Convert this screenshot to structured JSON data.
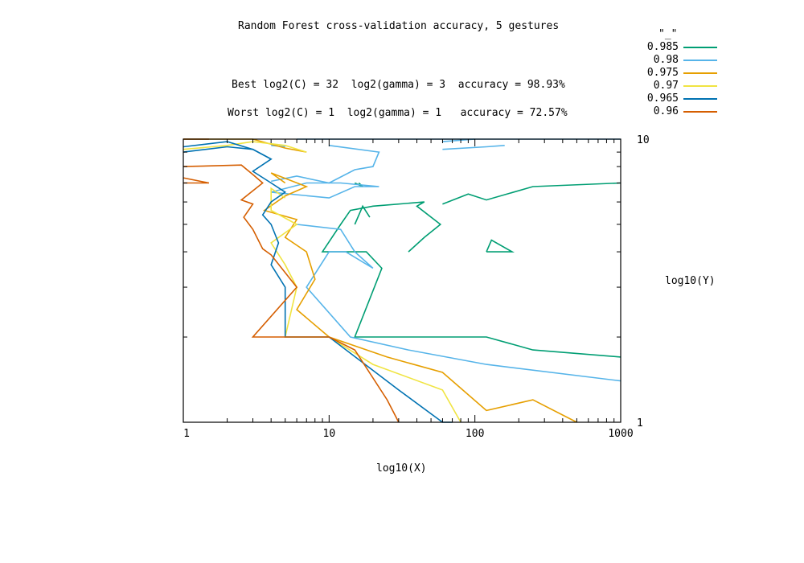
{
  "chart_data": {
    "type": "line",
    "title": "Random Forest cross-validation accuracy, 5 gestures",
    "annotations": [
      "Best log2(C) = 32  log2(gamma) = 3  accuracy = 98.93%",
      "Worst log2(C) = 1  log2(gamma) = 1   accuracy = 72.57%"
    ],
    "xlabel": "log10(X)",
    "ylabel": "log10(Y)",
    "x_scale": "log",
    "y_scale": "log",
    "xlim": [
      1,
      1000
    ],
    "ylim": [
      1,
      10
    ],
    "x_ticks": [
      "1",
      "10",
      "100",
      "1000"
    ],
    "y_ticks": [
      "1",
      "10"
    ],
    "legend_title": "\"_\"",
    "legend_position": "top-right",
    "series": [
      {
        "name": "0.985",
        "color": "#009e73",
        "segments": [
          [
            [
              35,
              4
            ],
            [
              45,
              4.5
            ],
            [
              58,
              5
            ],
            [
              40,
              5.8
            ],
            [
              45,
              6
            ],
            [
              20,
              5.8
            ],
            [
              14,
              5.6
            ],
            [
              12,
              5
            ],
            [
              9,
              4
            ],
            [
              18,
              4
            ],
            [
              23,
              3.5
            ],
            [
              15,
              2
            ],
            [
              120,
              2
            ],
            [
              250,
              1.8
            ],
            [
              1000,
              1.7
            ]
          ],
          [
            [
              120,
              4
            ],
            [
              130,
              4.4
            ],
            [
              180,
              4
            ],
            [
              120,
              4
            ]
          ],
          [
            [
              60,
              5.9
            ],
            [
              90,
              6.4
            ],
            [
              120,
              6.1
            ],
            [
              250,
              6.8
            ],
            [
              1000,
              7
            ]
          ],
          [
            [
              15,
              5
            ],
            [
              17,
              5.8
            ],
            [
              19,
              5.3
            ]
          ],
          [
            [
              15,
              7
            ],
            [
              17,
              6.8
            ],
            [
              16,
              7
            ]
          ]
        ]
      },
      {
        "name": "0.98",
        "color": "#56b4e9",
        "segments": [
          [
            [
              6,
              10
            ],
            [
              1000,
              10
            ]
          ],
          [
            [
              4,
              9.5
            ],
            [
              5,
              9.4
            ]
          ],
          [
            [
              4,
              6.5
            ],
            [
              10,
              6.2
            ],
            [
              15,
              6.8
            ],
            [
              22,
              6.8
            ],
            [
              12,
              7
            ],
            [
              7,
              7
            ],
            [
              4,
              6.5
            ]
          ],
          [
            [
              10,
              9.5
            ],
            [
              22,
              9
            ],
            [
              20,
              8
            ],
            [
              15,
              7.8
            ],
            [
              10,
              7
            ],
            [
              6,
              7.4
            ],
            [
              4,
              7.1
            ]
          ],
          [
            [
              6,
              5
            ],
            [
              12,
              4.8
            ],
            [
              15,
              4
            ],
            [
              20,
              3.5
            ],
            [
              13,
              4
            ],
            [
              10,
              4
            ],
            [
              7,
              3
            ],
            [
              14,
              2
            ],
            [
              35,
              1.8
            ],
            [
              120,
              1.6
            ],
            [
              1000,
              1.4
            ]
          ],
          [
            [
              60,
              9.2
            ],
            [
              120,
              9.4
            ]
          ],
          [
            [
              60,
              9.8
            ],
            [
              100,
              10
            ]
          ],
          [
            [
              120,
              9.4
            ],
            [
              160,
              9.5
            ]
          ]
        ]
      },
      {
        "name": "0.975",
        "color": "#e69f00",
        "segments": [
          [
            [
              1,
              10
            ],
            [
              3,
              10
            ],
            [
              5,
              9.3
            ],
            [
              7,
              9
            ]
          ],
          [
            [
              5,
              7
            ],
            [
              4,
              7.6
            ],
            [
              7,
              6.8
            ],
            [
              5,
              6.3
            ],
            [
              3.6,
              5.6
            ],
            [
              6,
              5.2
            ],
            [
              5,
              4.5
            ],
            [
              7,
              4
            ],
            [
              8,
              3.2
            ],
            [
              6,
              2.5
            ],
            [
              10,
              2
            ],
            [
              25,
              1.7
            ],
            [
              60,
              1.5
            ],
            [
              120,
              1.1
            ],
            [
              250,
              1.2
            ],
            [
              500,
              1
            ]
          ]
        ]
      },
      {
        "name": "0.97",
        "color": "#f0e442",
        "segments": [
          [
            [
              1,
              9.2
            ],
            [
              2,
              9.5
            ],
            [
              3,
              9.8
            ],
            [
              5,
              9.5
            ],
            [
              7,
              9
            ]
          ],
          [
            [
              5,
              6.2
            ],
            [
              4,
              6.7
            ],
            [
              4,
              5.6
            ],
            [
              6,
              5
            ],
            [
              4,
              4.3
            ],
            [
              5,
              3.6
            ],
            [
              6,
              3
            ],
            [
              5,
              2
            ],
            [
              10,
              2
            ],
            [
              20,
              1.6
            ],
            [
              60,
              1.3
            ],
            [
              80,
              1
            ]
          ]
        ]
      },
      {
        "name": "0.965",
        "color": "#0072b2",
        "segments": [
          [
            [
              1,
              9.4
            ],
            [
              2,
              9.8
            ],
            [
              3,
              9.2
            ],
            [
              4,
              8.5
            ]
          ],
          [
            [
              1,
              9
            ],
            [
              2,
              9.4
            ],
            [
              3,
              9.2
            ],
            [
              4,
              8.5
            ],
            [
              3,
              7.7
            ],
            [
              4,
              7
            ],
            [
              5,
              6.5
            ],
            [
              4,
              6
            ],
            [
              3.5,
              5.4
            ],
            [
              4,
              5
            ],
            [
              4.5,
              4.3
            ],
            [
              4,
              3.6
            ],
            [
              5,
              3
            ],
            [
              5,
              2
            ],
            [
              10,
              2
            ],
            [
              30,
              1.3
            ],
            [
              60,
              1
            ],
            [
              70,
              1
            ]
          ]
        ]
      },
      {
        "name": "0.96",
        "color": "#d55e00",
        "segments": [
          [
            [
              1,
              10
            ],
            [
              1.5,
              10
            ]
          ],
          [
            [
              1,
              8
            ],
            [
              2.5,
              8.1
            ],
            [
              3,
              7.5
            ],
            [
              3.5,
              7
            ],
            [
              2.5,
              6.1
            ],
            [
              3,
              5.9
            ],
            [
              2.6,
              5.3
            ],
            [
              3,
              4.8
            ],
            [
              3.5,
              4.1
            ],
            [
              4,
              3.9
            ],
            [
              6,
              3
            ],
            [
              3,
              2
            ],
            [
              10,
              2
            ],
            [
              15,
              1.8
            ],
            [
              25,
              1.2
            ],
            [
              30,
              1
            ]
          ],
          [
            [
              1,
              7
            ],
            [
              1.5,
              7
            ],
            [
              1,
              7.3
            ]
          ]
        ]
      }
    ]
  }
}
